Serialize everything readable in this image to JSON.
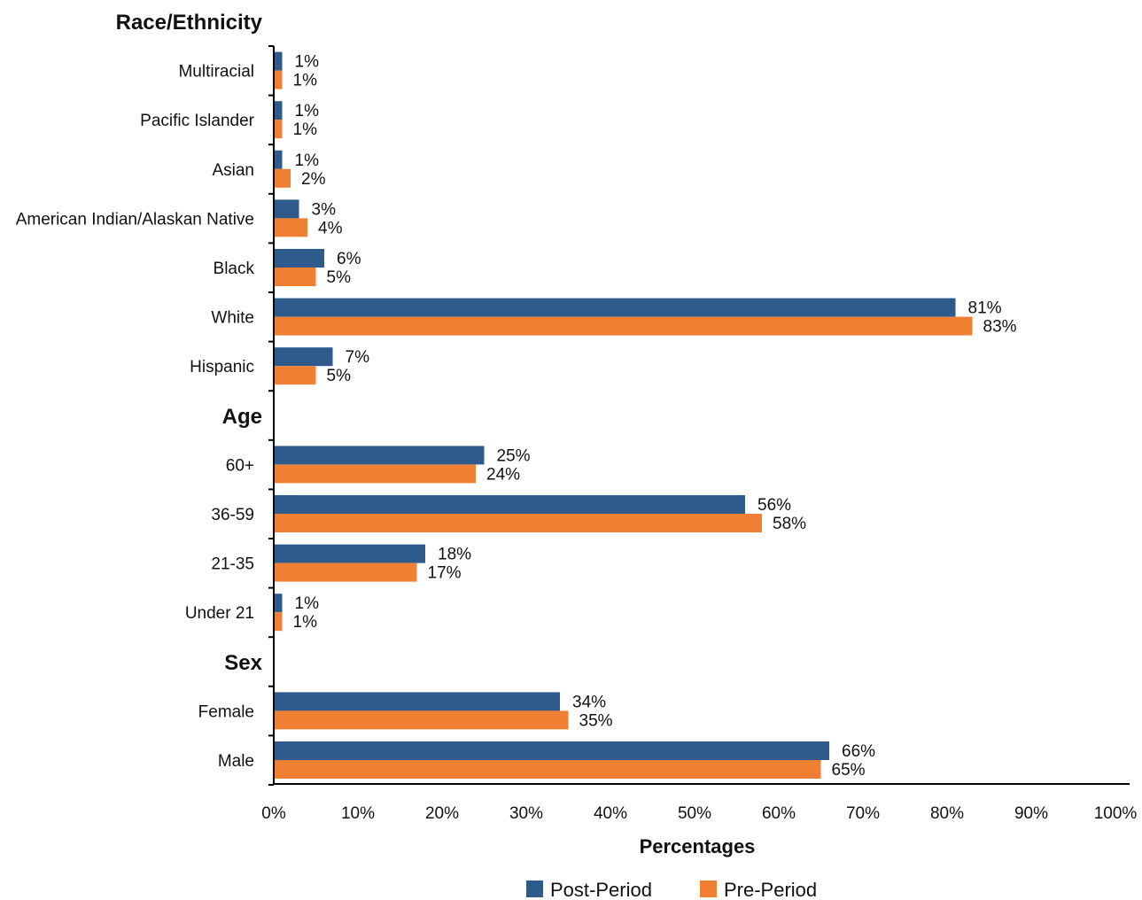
{
  "chart_data": {
    "type": "bar",
    "orientation": "horizontal",
    "xlabel": "Percentages",
    "xlim": [
      0,
      100
    ],
    "x_ticks": [
      "0%",
      "10%",
      "20%",
      "30%",
      "40%",
      "50%",
      "60%",
      "70%",
      "80%",
      "90%",
      "100%"
    ],
    "legend": {
      "position": "bottom",
      "entries": [
        "Post-Period",
        "Pre-Period"
      ]
    },
    "colors": {
      "Post-Period": "#2f5b8c",
      "Pre-Period": "#ef7f33"
    },
    "groups": [
      {
        "name": "Race/Ethnicity",
        "categories": [
          {
            "label": "Multiracial",
            "post": 1,
            "pre": 1
          },
          {
            "label": "Pacific Islander",
            "post": 1,
            "pre": 1
          },
          {
            "label": "Asian",
            "post": 1,
            "pre": 2
          },
          {
            "label": "American Indian/Alaskan Native",
            "post": 3,
            "pre": 4
          },
          {
            "label": "Black",
            "post": 6,
            "pre": 5
          },
          {
            "label": "White",
            "post": 81,
            "pre": 83
          },
          {
            "label": "Hispanic",
            "post": 7,
            "pre": 5
          }
        ]
      },
      {
        "name": "Age",
        "categories": [
          {
            "label": "60+",
            "post": 25,
            "pre": 24
          },
          {
            "label": "36-59",
            "post": 56,
            "pre": 58
          },
          {
            "label": "21-35",
            "post": 18,
            "pre": 17
          },
          {
            "label": "Under 21",
            "post": 1,
            "pre": 1
          }
        ]
      },
      {
        "name": "Sex",
        "categories": [
          {
            "label": "Female",
            "post": 34,
            "pre": 35
          },
          {
            "label": "Male",
            "post": 66,
            "pre": 65
          }
        ]
      }
    ]
  }
}
